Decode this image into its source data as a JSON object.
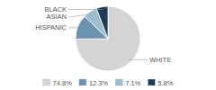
{
  "chart_data": {
    "type": "pie",
    "categories": [
      "WHITE",
      "HISPANIC",
      "ASIAN",
      "BLACK"
    ],
    "values": [
      74.8,
      12.3,
      7.1,
      5.8
    ],
    "value_labels": [
      "74.8%",
      "12.3%",
      "7.1%",
      "5.8%"
    ],
    "colors": [
      "#d4d4d4",
      "#6b93b0",
      "#9dbdd1",
      "#1e3a56"
    ]
  }
}
